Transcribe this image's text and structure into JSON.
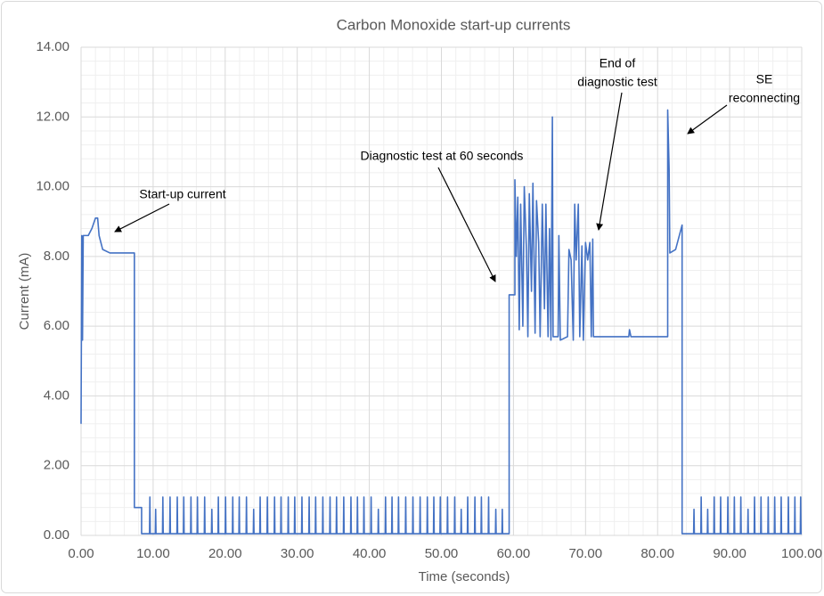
{
  "chart_data": {
    "type": "line",
    "title": "Carbon Monoxide start-up currents",
    "x_label": "Time (seconds)",
    "y_label": "Current (mA)",
    "color": "#4472c4",
    "grid": true,
    "minor_grid": true,
    "xlim": [
      0,
      100
    ],
    "xticks": [
      {
        "value": 0,
        "label": "0.00"
      },
      {
        "value": 10,
        "label": "10.00"
      },
      {
        "value": 20,
        "label": "20.00"
      },
      {
        "value": 30,
        "label": "30.00"
      },
      {
        "value": 40,
        "label": "40.00"
      },
      {
        "value": 50,
        "label": "50.00"
      },
      {
        "value": 60,
        "label": "60.00"
      },
      {
        "value": 70,
        "label": "70.00"
      },
      {
        "value": 80,
        "label": "80.00"
      },
      {
        "value": 90,
        "label": "90.00"
      },
      {
        "value": 100,
        "label": "100.00"
      }
    ],
    "ylim": [
      0,
      14
    ],
    "yticks": [
      {
        "value": 0,
        "label": "0.00"
      },
      {
        "value": 2,
        "label": "2.00"
      },
      {
        "value": 4,
        "label": "4.00"
      },
      {
        "value": 6,
        "label": "6.00"
      },
      {
        "value": 8,
        "label": "8.00"
      },
      {
        "value": 10,
        "label": "10.00"
      },
      {
        "value": 12,
        "label": "12.00"
      },
      {
        "value": 14,
        "label": "14.00"
      }
    ],
    "annotations": [
      {
        "text": [
          "Start-up current"
        ]
      },
      {
        "text": [
          "Diagnostic test at 60 seconds"
        ]
      },
      {
        "text": [
          "End of",
          "diagnostic test"
        ]
      },
      {
        "text": [
          "SE",
          "reconnecting"
        ]
      }
    ],
    "x": [
      0,
      0.1,
      0.2,
      0.3,
      1,
      1.5,
      2,
      2.3,
      2.5,
      3,
      4,
      7.4,
      7.4,
      8.4,
      8.4,
      9.5,
      9.55,
      9.6,
      10.3,
      10.35,
      10.4,
      11.3,
      11.35,
      11.4,
      12.3,
      12.35,
      12.4,
      13.3,
      13.35,
      13.4,
      14.2,
      14.25,
      14.3,
      15.2,
      15.25,
      15.3,
      16.1,
      16.15,
      16.2,
      17.1,
      17.15,
      17.2,
      18.1,
      18.15,
      18.2,
      19,
      19.05,
      19.1,
      20,
      20.05,
      20.1,
      21,
      21.05,
      21.1,
      21.9,
      21.95,
      22,
      22.9,
      22.95,
      23,
      23.9,
      23.95,
      24,
      24.8,
      24.85,
      24.9,
      25.8,
      25.85,
      25.9,
      26.8,
      26.85,
      26.9,
      27.7,
      27.75,
      27.8,
      28.7,
      28.75,
      28.8,
      29.6,
      29.65,
      29.7,
      30.6,
      30.65,
      30.7,
      31.6,
      31.65,
      31.7,
      32.5,
      32.55,
      32.6,
      33.5,
      33.55,
      33.6,
      34.5,
      34.55,
      34.6,
      35.4,
      35.45,
      35.5,
      36.4,
      36.45,
      36.5,
      37.4,
      37.45,
      37.5,
      38.3,
      38.35,
      38.4,
      39.2,
      39.25,
      39.3,
      40.2,
      40.25,
      40.3,
      41.2,
      41.25,
      41.3,
      42.2,
      42.25,
      42.3,
      43.1,
      43.15,
      43.2,
      44,
      44.05,
      44.1,
      45,
      45.05,
      45.1,
      46,
      46.05,
      46.1,
      47,
      47.05,
      47.1,
      48,
      48.05,
      48.1,
      48.9,
      48.95,
      49,
      49.8,
      49.85,
      49.9,
      50.8,
      50.85,
      50.9,
      51.8,
      51.85,
      51.9,
      52.7,
      52.75,
      52.8,
      53.6,
      53.65,
      53.7,
      54.6,
      54.65,
      54.7,
      55.5,
      55.55,
      55.6,
      56.5,
      56.55,
      56.6,
      57.5,
      57.55,
      57.6,
      58.4,
      58.45,
      58.5,
      59.4,
      59.4,
      60.2,
      60.2,
      60.4,
      60.6,
      60.8,
      61,
      61.3,
      61.5,
      61.8,
      62,
      62.2,
      62.5,
      62.7,
      63,
      63.2,
      63.5,
      63.7,
      64,
      64.3,
      64.5,
      64.8,
      65,
      65.2,
      65.4,
      65.5,
      66.2,
      66.3,
      66.5,
      67.5,
      67.7,
      68,
      68.3,
      68.5,
      68.7,
      69,
      69.2,
      69.5,
      69.7,
      70,
      70.3,
      70.6,
      70.8,
      71,
      71.1,
      76,
      76.1,
      76.3,
      81.4,
      81.4,
      81.6,
      81.7,
      82.5,
      83.4,
      83.4,
      84.5,
      85,
      85.05,
      85.1,
      86,
      86.05,
      86.1,
      86.9,
      86.95,
      87,
      87.8,
      87.85,
      87.9,
      88.7,
      88.75,
      88.8,
      89.7,
      89.75,
      89.8,
      90.6,
      90.65,
      90.7,
      91.5,
      91.55,
      91.6,
      92.5,
      92.55,
      92.6,
      93.4,
      93.45,
      93.5,
      94.3,
      94.35,
      94.4,
      95.3,
      95.35,
      95.4,
      96.2,
      96.25,
      96.3,
      97.1,
      97.15,
      97.2,
      98.1,
      98.15,
      98.2,
      99,
      99.05,
      99.1,
      99.8,
      99.85,
      99.9,
      100
    ],
    "values": [
      3.2,
      8.6,
      5.6,
      8.6,
      8.6,
      8.8,
      9.1,
      9.1,
      8.6,
      8.2,
      8.1,
      8.1,
      0.8,
      0.8,
      0.05,
      0.05,
      1.1,
      0.05,
      0.05,
      0.75,
      0.05,
      0.05,
      1.1,
      0.05,
      0.05,
      1.1,
      0.05,
      0.05,
      1.1,
      0.05,
      0.05,
      1.1,
      0.05,
      0.05,
      1.1,
      0.05,
      0.05,
      1.1,
      0.05,
      0.05,
      1.1,
      0.05,
      0.05,
      0.75,
      0.05,
      0.05,
      1.1,
      0.05,
      0.05,
      1.1,
      0.05,
      0.05,
      1.1,
      0.05,
      0.05,
      1.1,
      0.05,
      0.05,
      1.1,
      0.05,
      0.05,
      0.75,
      0.05,
      0.05,
      1.1,
      0.05,
      0.05,
      1.1,
      0.05,
      0.05,
      1.1,
      0.05,
      0.05,
      1.1,
      0.05,
      0.05,
      1.1,
      0.05,
      0.05,
      1.1,
      0.05,
      0.05,
      1.1,
      0.05,
      0.05,
      1.1,
      0.05,
      0.05,
      1.1,
      0.05,
      0.05,
      1.1,
      0.05,
      0.05,
      1.1,
      0.05,
      0.05,
      1.1,
      0.05,
      0.05,
      1.1,
      0.05,
      0.05,
      1.1,
      0.05,
      0.05,
      1.1,
      0.05,
      0.05,
      1.1,
      0.05,
      0.05,
      1.1,
      0.05,
      0.05,
      0.75,
      0.05,
      0.05,
      1.1,
      0.05,
      0.05,
      1.1,
      0.05,
      0.05,
      1.1,
      0.05,
      0.05,
      1.1,
      0.05,
      0.05,
      1.1,
      0.05,
      0.05,
      1.1,
      0.05,
      0.05,
      1.1,
      0.05,
      0.05,
      1.1,
      0.05,
      0.05,
      1.1,
      0.05,
      0.05,
      1.1,
      0.05,
      0.05,
      1.1,
      0.05,
      0.05,
      0.75,
      0.05,
      0.05,
      1.1,
      0.05,
      0.05,
      1.1,
      0.05,
      0.05,
      1.1,
      0.05,
      0.05,
      1.1,
      0.05,
      0.05,
      0.75,
      0.05,
      0.05,
      0.75,
      0.05,
      0.05,
      6.9,
      6.9,
      10.2,
      8.0,
      9.7,
      5.9,
      9.5,
      6.0,
      10.0,
      8.2,
      5.7,
      9.8,
      7.0,
      10.1,
      5.8,
      9.6,
      8.4,
      5.7,
      9.5,
      6.5,
      9.5,
      5.7,
      8.8,
      5.6,
      12.0,
      5.7,
      5.7,
      8.6,
      5.6,
      5.7,
      8.2,
      7.9,
      5.6,
      9.5,
      7.9,
      9.5,
      5.7,
      8.3,
      5.6,
      8.4,
      7.9,
      8.4,
      5.7,
      8.5,
      5.7,
      5.7,
      5.9,
      5.7,
      5.7,
      12.2,
      10.5,
      8.1,
      8.2,
      8.9,
      0.05,
      0.05,
      0.05,
      0.75,
      0.05,
      0.05,
      1.1,
      0.05,
      0.05,
      0.75,
      0.05,
      0.05,
      1.1,
      0.05,
      0.05,
      1.1,
      0.05,
      0.05,
      1.1,
      0.05,
      0.05,
      1.1,
      0.05,
      0.05,
      1.1,
      0.05,
      0.05,
      0.75,
      0.05,
      0.05,
      1.1,
      0.05,
      0.05,
      1.1,
      0.05,
      0.05,
      1.1,
      0.05,
      0.05,
      1.1,
      0.05,
      0.05,
      1.1,
      0.05,
      0.05,
      1.1,
      0.05,
      0.05,
      1.1,
      0.05,
      0.05,
      1.1,
      0.05,
      0.05
    ]
  }
}
